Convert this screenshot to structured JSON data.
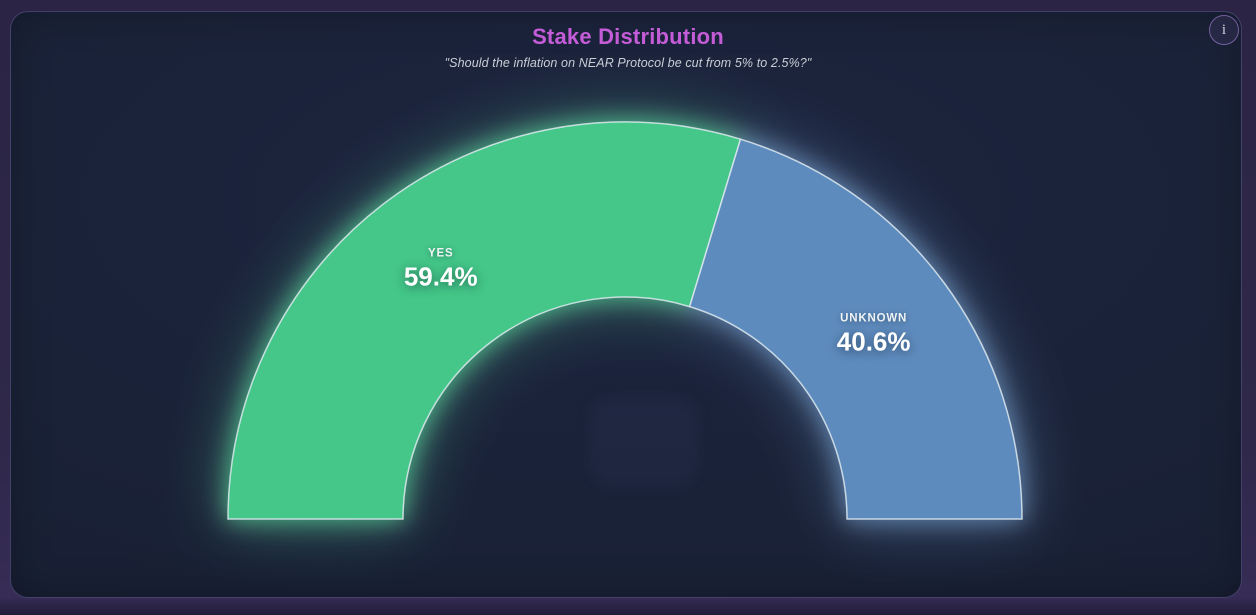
{
  "header": {
    "title": "Stake Distribution",
    "subtitle": "\"Should the inflation on NEAR Protocol be cut from 5% to 2.5%?\"",
    "title_color": "#c45cd8",
    "info_icon": "i"
  },
  "chart_data": {
    "type": "pie",
    "variant": "half-donut",
    "title": "Stake Distribution",
    "subtitle": "\"Should the inflation on NEAR Protocol be cut from 5% to 2.5%?\"",
    "unit": "%",
    "start_angle_deg": 180,
    "end_angle_deg": 0,
    "inner_radius_ratio": 0.56,
    "series": [
      {
        "label": "YES",
        "value": 59.4,
        "display": "59.4%",
        "color": "#44c789"
      },
      {
        "label": "UNKNOWN",
        "value": 40.6,
        "display": "40.6%",
        "color": "#5e8bbe"
      }
    ],
    "segment_stroke_color": "#dde9ef",
    "legend_position": "on-segment",
    "grid": false
  },
  "colors": {
    "page_background": "#2f2849",
    "card_background": "#1a2238",
    "card_border": "#55487a"
  }
}
